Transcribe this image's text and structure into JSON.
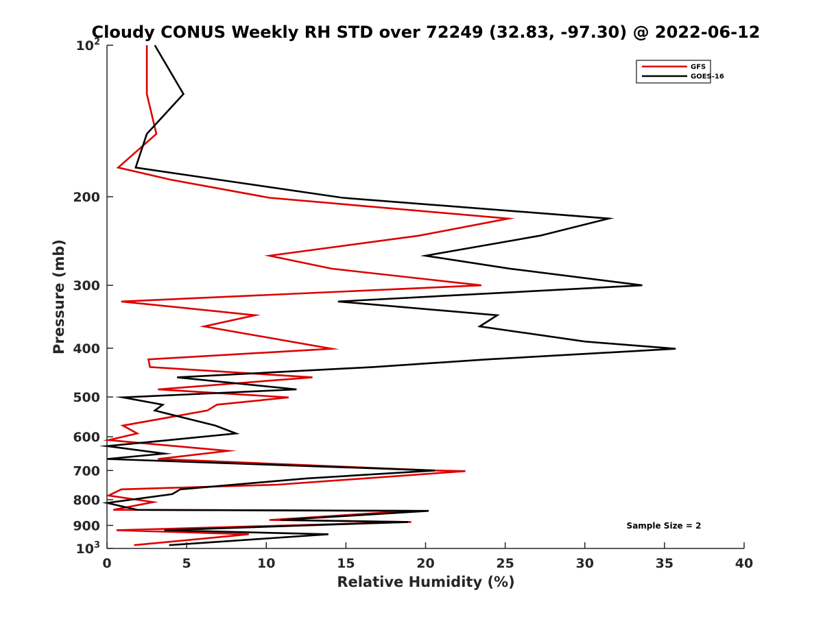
{
  "chart_data": {
    "type": "line",
    "title": "Cloudy CONUS Weekly RH STD over 72249 (32.83, -97.30) @ 2022-06-12",
    "xlabel": "Relative Humidity (%)",
    "ylabel": "Pressure (mb)",
    "xlim": [
      0,
      40
    ],
    "ylim": [
      100,
      1000
    ],
    "y_scale": "log",
    "y_reversed": true,
    "x_ticks": [
      "0",
      "5",
      "10",
      "15",
      "20",
      "25",
      "30",
      "35",
      "40"
    ],
    "y_ticks": [
      {
        "value": 100,
        "base": "10",
        "exp": "2"
      },
      {
        "value": 200,
        "label": "200"
      },
      {
        "value": 300,
        "label": "300"
      },
      {
        "value": 400,
        "label": "400"
      },
      {
        "value": 500,
        "label": "500"
      },
      {
        "value": 600,
        "label": "600"
      },
      {
        "value": 700,
        "label": "700"
      },
      {
        "value": 800,
        "label": "800"
      },
      {
        "value": 900,
        "label": "900"
      },
      {
        "value": 1000,
        "base": "10",
        "exp": "3"
      }
    ],
    "grid": false,
    "legend_position": "top-right",
    "annotation": "Sample Size = 2",
    "series": [
      {
        "name": "GFS",
        "color": "#dd0000",
        "points": [
          [
            2.5,
            100
          ],
          [
            2.5,
            125
          ],
          [
            3.1,
            150
          ],
          [
            0.7,
            175
          ],
          [
            4.0,
            185
          ],
          [
            10.2,
            201
          ],
          [
            25.2,
            221
          ],
          [
            19.6,
            239
          ],
          [
            10.2,
            262
          ],
          [
            14.1,
            278
          ],
          [
            23.5,
            300
          ],
          [
            0.9,
            323
          ],
          [
            9.3,
            344
          ],
          [
            6.1,
            362
          ],
          [
            14.1,
            401
          ],
          [
            2.6,
            421
          ],
          [
            2.7,
            436
          ],
          [
            12.9,
            457
          ],
          [
            3.2,
            483
          ],
          [
            11.4,
            501
          ],
          [
            6.9,
            518
          ],
          [
            6.3,
            532
          ],
          [
            1.0,
            570
          ],
          [
            1.9,
            591
          ],
          [
            0.1,
            609
          ],
          [
            7.6,
            640
          ],
          [
            3.2,
            664
          ],
          [
            20.6,
            700
          ],
          [
            22.5,
            702
          ],
          [
            10.7,
            747
          ],
          [
            0.9,
            763
          ],
          [
            0.1,
            785
          ],
          [
            2.9,
            809
          ],
          [
            0.4,
            838
          ],
          [
            19.1,
            842
          ],
          [
            10.2,
            878
          ],
          [
            19.1,
            886
          ],
          [
            0.6,
            920
          ],
          [
            8.9,
            937
          ],
          [
            1.7,
            985
          ]
        ]
      },
      {
        "name": "GOES-16",
        "color": "#000000",
        "points": [
          [
            3.0,
            100
          ],
          [
            4.8,
            125
          ],
          [
            2.5,
            150
          ],
          [
            1.8,
            175
          ],
          [
            7.0,
            185
          ],
          [
            14.8,
            201
          ],
          [
            31.5,
            221
          ],
          [
            27.2,
            239
          ],
          [
            20.0,
            262
          ],
          [
            25.3,
            278
          ],
          [
            33.6,
            300
          ],
          [
            14.5,
            323
          ],
          [
            24.5,
            344
          ],
          [
            23.4,
            362
          ],
          [
            30.0,
            388
          ],
          [
            35.7,
            401
          ],
          [
            23.9,
            421
          ],
          [
            16.7,
            436
          ],
          [
            4.4,
            457
          ],
          [
            11.9,
            483
          ],
          [
            1.0,
            501
          ],
          [
            3.5,
            518
          ],
          [
            3.0,
            532
          ],
          [
            6.8,
            570
          ],
          [
            8.1,
            591
          ],
          [
            3.9,
            609
          ],
          [
            0.0,
            626
          ],
          [
            3.6,
            648
          ],
          [
            0.0,
            664
          ],
          [
            20.6,
            700
          ],
          [
            12.5,
            726
          ],
          [
            4.6,
            763
          ],
          [
            4.1,
            780
          ],
          [
            0.0,
            812
          ],
          [
            1.9,
            838
          ],
          [
            20.2,
            842
          ],
          [
            10.9,
            878
          ],
          [
            18.9,
            886
          ],
          [
            3.6,
            920
          ],
          [
            13.9,
            937
          ],
          [
            3.9,
            985
          ]
        ]
      }
    ]
  }
}
